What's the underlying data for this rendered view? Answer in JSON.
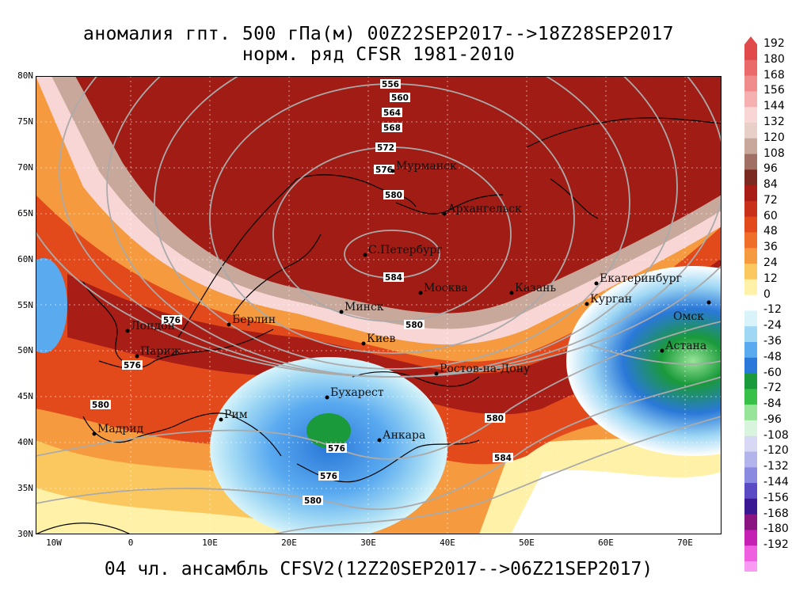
{
  "title": {
    "line1": "аномалия гпт. 500 гПа(м) 00Z22SEP2017-->18Z28SEP2017",
    "line2": "норм. ряд CFSR 1981-2010"
  },
  "bottom_title": "04 чл. ансамбль CFSV2(12Z20SEP2017-->06Z21SEP2017)",
  "axes": {
    "lat_labels": [
      "80N",
      "75N",
      "70N",
      "65N",
      "60N",
      "55N",
      "50N",
      "45N",
      "40N",
      "35N",
      "30N"
    ],
    "lon_labels": [
      "10W",
      "0",
      "10E",
      "20E",
      "30E",
      "40E",
      "50E",
      "60E",
      "70E"
    ]
  },
  "legend": {
    "labels": [
      "192",
      "180",
      "168",
      "156",
      "144",
      "132",
      "120",
      "108",
      "96",
      "84",
      "72",
      "60",
      "48",
      "36",
      "24",
      "12",
      "0",
      "-12",
      "-24",
      "-36",
      "-48",
      "-60",
      "-72",
      "-84",
      "-96",
      "-108",
      "-120",
      "-132",
      "-144",
      "-156",
      "-168",
      "-180",
      "-192"
    ],
    "colors": [
      "#e04a4a",
      "#ea6a6a",
      "#f08c8c",
      "#f5b0b0",
      "#f9d6d6",
      "#e8d0c8",
      "#c9a89c",
      "#a07064",
      "#7a2a20",
      "#a81e16",
      "#c8301a",
      "#e24a1c",
      "#ee6e2a",
      "#f59a3e",
      "#fbc860",
      "#fff2a8",
      "#ffffff",
      "#d8f4fa",
      "#a0d8f4",
      "#5aaaf0",
      "#2a78d8",
      "#1a9a3a",
      "#38c048",
      "#98e498",
      "#d8f4dc",
      "#d8d8f4",
      "#b4b4ec",
      "#8a8ae0",
      "#5a4ac4",
      "#3a1894",
      "#8a1480",
      "#c420b4",
      "#ee60e0",
      "#f89af2"
    ]
  },
  "cities": [
    {
      "name": "Мурманск"
    },
    {
      "name": "Архангельск"
    },
    {
      "name": "С.Петербург"
    },
    {
      "name": "Москва"
    },
    {
      "name": "Казань"
    },
    {
      "name": "Екатеринбург"
    },
    {
      "name": "Курган"
    },
    {
      "name": "Омск"
    },
    {
      "name": "Астана"
    },
    {
      "name": "Минск"
    },
    {
      "name": "Киев"
    },
    {
      "name": "Берлин"
    },
    {
      "name": "Лондон"
    },
    {
      "name": "Париж"
    },
    {
      "name": "Мадрид"
    },
    {
      "name": "Рим"
    },
    {
      "name": "Бухарест"
    },
    {
      "name": "Анкара"
    },
    {
      "name": "Ростов-на-Дону"
    }
  ],
  "contour_labels": [
    "556",
    "560",
    "564",
    "568",
    "572",
    "576",
    "580",
    "584",
    "576",
    "576",
    "580",
    "580",
    "576",
    "576",
    "580",
    "584",
    "580",
    "584",
    "576"
  ],
  "colors": {
    "pos_dark": "#a01c14",
    "pos_mid": "#e05a22",
    "pos_light": "#f7b04a",
    "neg_light": "#a0d8f4",
    "neg_mid": "#2a78d8",
    "green": "#1a9a3a"
  }
}
